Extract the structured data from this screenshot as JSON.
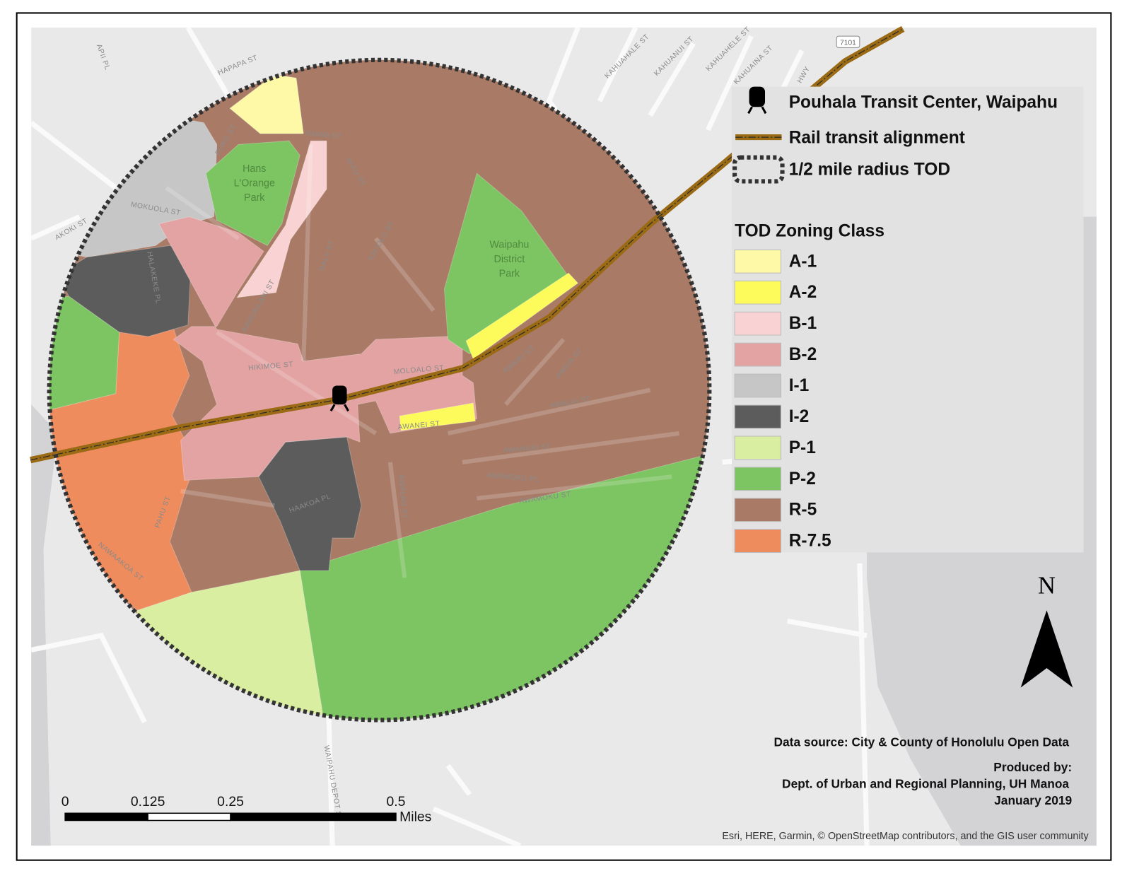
{
  "legend": {
    "site": "Pouhala Transit Center, Waipahu",
    "rail": "Rail transit alignment",
    "radius": "1/2 mile radius TOD",
    "zoning_title": "TOD Zoning Class",
    "classes": [
      {
        "label": "A-1",
        "color": "#fdf9a6"
      },
      {
        "label": "A-2",
        "color": "#fdfb5c"
      },
      {
        "label": "B-1",
        "color": "#f9d3d3"
      },
      {
        "label": "B-2",
        "color": "#e3a3a3"
      },
      {
        "label": "I-1",
        "color": "#c6c6c6"
      },
      {
        "label": "I-2",
        "color": "#5c5c5c"
      },
      {
        "label": "P-1",
        "color": "#d9eea0"
      },
      {
        "label": "P-2",
        "color": "#7dc462"
      },
      {
        "label": "R-5",
        "color": "#a97b67"
      },
      {
        "label": "R-7.5",
        "color": "#ee8c5e"
      }
    ]
  },
  "parks": [
    {
      "lines": [
        "Hans",
        "L'Orange",
        "Park"
      ]
    },
    {
      "lines": [
        "Waipahu",
        "District",
        "Park"
      ]
    }
  ],
  "streets": [
    "HAPAPA ST",
    "APII PL",
    "PUKO ST",
    "PAIWA ST",
    "NIAU ST",
    "MOKUOLA ST",
    "AKOKI ST",
    "KAUOLU ST",
    "NALII ST",
    "KAHUAILANI ST",
    "HALAKEKE PL",
    "HIKIMOE ST",
    "MOLOALO ST",
    "AWANEI ST",
    "AWAIKI ST",
    "AWAIA ST",
    "AWALAI ST",
    "AWANANI ST",
    "AWAMOKU PL",
    "AWAMOKU ST",
    "HAAKOA PL",
    "AWALAU ST",
    "PAHU ST",
    "NAWAAKOA ST",
    "WAIPAHU DEPOT ST",
    "KAHUAHALE ST",
    "KAHUANUI ST",
    "KAHUAHELE ST",
    "KAHUAINA ST",
    "HWY"
  ],
  "highway_shield": "7101",
  "north": "N",
  "scale_bar": {
    "labels": [
      "0",
      "0.125",
      "0.25",
      "0.5"
    ],
    "unit": "Miles"
  },
  "credits": {
    "source": "Data source: City & County of Honolulu Open Data",
    "produced": [
      "Produced by:",
      "Dept. of Urban and Regional Planning, UH Manoa",
      "January 2019"
    ],
    "attribution": "Esri, HERE, Garmin, © OpenStreetMap contributors, and the GIS user community"
  }
}
